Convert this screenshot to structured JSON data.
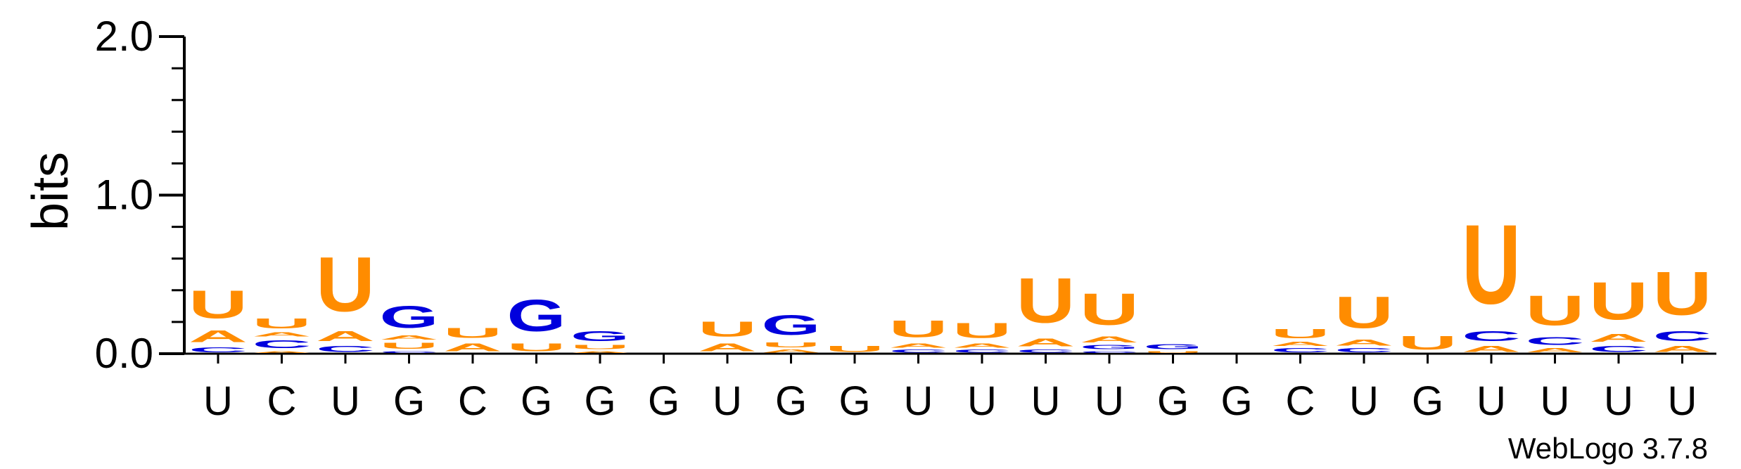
{
  "chart_data": {
    "type": "sequence-logo",
    "title": "",
    "xlabel": "",
    "ylabel": "bits",
    "ylim": [
      0,
      2.0
    ],
    "yticks": [
      "0.0",
      "1.0",
      "2.0"
    ],
    "grid": false,
    "colors": {
      "U": "#FF8C00",
      "A": "#FF8C00",
      "C": "#0000DD",
      "G": "#0000DD"
    },
    "credit": "WebLogo 3.7.8",
    "positions": [
      {
        "label": "U",
        "stack": [
          {
            "letter": "C",
            "bits": 0.05
          },
          {
            "letter": "A",
            "bits": 0.12
          },
          {
            "letter": "U",
            "bits": 0.28
          }
        ]
      },
      {
        "label": "C",
        "stack": [
          {
            "letter": "A",
            "bits": 0.02
          },
          {
            "letter": "C",
            "bits": 0.08
          },
          {
            "letter": "A",
            "bits": 0.04
          },
          {
            "letter": "U",
            "bits": 0.1
          }
        ]
      },
      {
        "label": "U",
        "stack": [
          {
            "letter": "C",
            "bits": 0.06
          },
          {
            "letter": "A",
            "bits": 0.1
          },
          {
            "letter": "U",
            "bits": 0.55
          }
        ]
      },
      {
        "label": "G",
        "stack": [
          {
            "letter": "C",
            "bits": 0.02
          },
          {
            "letter": "U",
            "bits": 0.06
          },
          {
            "letter": "A",
            "bits": 0.04
          },
          {
            "letter": "G",
            "bits": 0.22
          }
        ]
      },
      {
        "label": "C",
        "stack": [
          {
            "letter": "A",
            "bits": 0.08
          },
          {
            "letter": "U",
            "bits": 0.1
          }
        ]
      },
      {
        "label": "G",
        "stack": [
          {
            "letter": "U",
            "bits": 0.08
          },
          {
            "letter": "G",
            "bits": 0.32
          }
        ]
      },
      {
        "label": "G",
        "stack": [
          {
            "letter": "A",
            "bits": 0.02
          },
          {
            "letter": "U",
            "bits": 0.04
          },
          {
            "letter": "G",
            "bits": 0.1
          }
        ]
      },
      {
        "label": "G",
        "stack": []
      },
      {
        "label": "U",
        "stack": [
          {
            "letter": "A",
            "bits": 0.08
          },
          {
            "letter": "U",
            "bits": 0.15
          }
        ]
      },
      {
        "label": "G",
        "stack": [
          {
            "letter": "A",
            "bits": 0.03
          },
          {
            "letter": "U",
            "bits": 0.05
          },
          {
            "letter": "G",
            "bits": 0.2
          }
        ]
      },
      {
        "label": "G",
        "stack": [
          {
            "letter": "U",
            "bits": 0.06
          }
        ]
      },
      {
        "label": "U",
        "stack": [
          {
            "letter": "C",
            "bits": 0.03
          },
          {
            "letter": "A",
            "bits": 0.04
          },
          {
            "letter": "U",
            "bits": 0.17
          }
        ]
      },
      {
        "label": "U",
        "stack": [
          {
            "letter": "C",
            "bits": 0.03
          },
          {
            "letter": "A",
            "bits": 0.04
          },
          {
            "letter": "U",
            "bits": 0.15
          }
        ]
      },
      {
        "label": "U",
        "stack": [
          {
            "letter": "C",
            "bits": 0.03
          },
          {
            "letter": "A",
            "bits": 0.08
          },
          {
            "letter": "U",
            "bits": 0.45
          }
        ]
      },
      {
        "label": "U",
        "stack": [
          {
            "letter": "C",
            "bits": 0.02
          },
          {
            "letter": "G",
            "bits": 0.04
          },
          {
            "letter": "A",
            "bits": 0.06
          },
          {
            "letter": "U",
            "bits": 0.32
          }
        ]
      },
      {
        "label": "G",
        "stack": [
          {
            "letter": "U",
            "bits": 0.02
          },
          {
            "letter": "G",
            "bits": 0.05
          }
        ]
      },
      {
        "label": "G",
        "stack": []
      },
      {
        "label": "C",
        "stack": [
          {
            "letter": "C",
            "bits": 0.04
          },
          {
            "letter": "A",
            "bits": 0.04
          },
          {
            "letter": "U",
            "bits": 0.09
          }
        ]
      },
      {
        "label": "U",
        "stack": [
          {
            "letter": "C",
            "bits": 0.04
          },
          {
            "letter": "A",
            "bits": 0.06
          },
          {
            "letter": "U",
            "bits": 0.32
          }
        ]
      },
      {
        "label": "G",
        "stack": [
          {
            "letter": "U",
            "bits": 0.14
          }
        ]
      },
      {
        "label": "U",
        "stack": [
          {
            "letter": "A",
            "bits": 0.06
          },
          {
            "letter": "C",
            "bits": 0.1
          },
          {
            "letter": "U",
            "bits": 0.8
          }
        ]
      },
      {
        "label": "U",
        "stack": [
          {
            "letter": "A",
            "bits": 0.04
          },
          {
            "letter": "C",
            "bits": 0.08
          },
          {
            "letter": "U",
            "bits": 0.3
          }
        ]
      },
      {
        "label": "U",
        "stack": [
          {
            "letter": "C",
            "bits": 0.06
          },
          {
            "letter": "A",
            "bits": 0.08
          },
          {
            "letter": "U",
            "bits": 0.38
          }
        ]
      },
      {
        "label": "U",
        "stack": [
          {
            "letter": "A",
            "bits": 0.06
          },
          {
            "letter": "C",
            "bits": 0.1
          },
          {
            "letter": "U",
            "bits": 0.44
          }
        ]
      }
    ]
  }
}
